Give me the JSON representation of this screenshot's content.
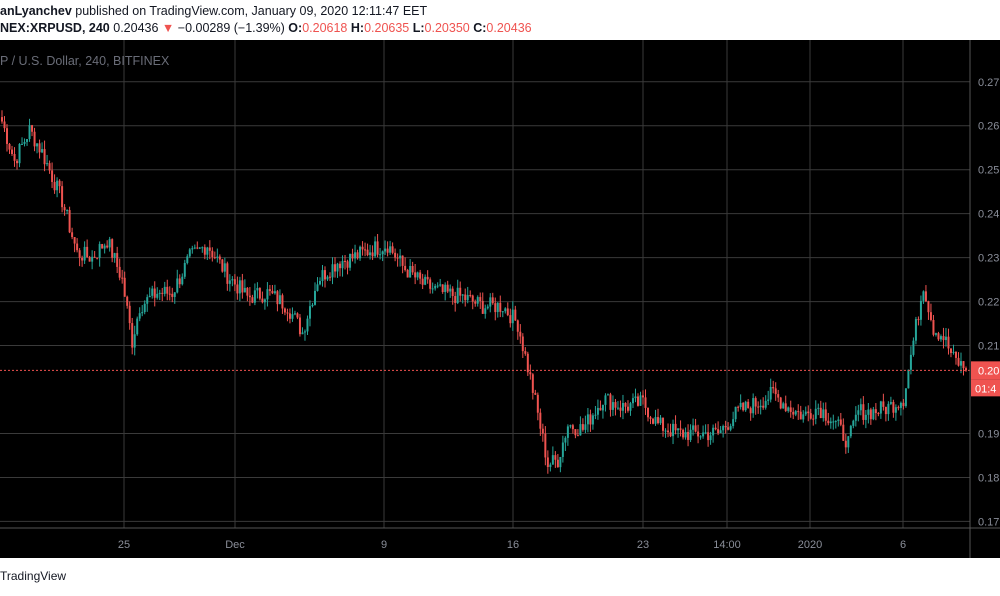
{
  "header": {
    "author": "anLyanchev",
    "published_text": "published on TradingView.com, January 09, 2020 12:11:47 EET",
    "symbol": "NEX:XRPUSD, 240",
    "last_price": "0.20436",
    "change_arrow": "▼",
    "change": "−0.00289 (−1.39%)",
    "open_label": "O:",
    "open_value": "0.20618",
    "high_label": "H:",
    "high_value": "0.20635",
    "low_label": "L:",
    "low_value": "0.20350",
    "close_label": "C:",
    "close_value": "0.20436"
  },
  "footer": {
    "brand": "TradingView"
  },
  "colors": {
    "up": "#26a69a",
    "down": "#ef5350",
    "background": "#000000",
    "grid": "#3a3a3a",
    "price_line": "#ef5350"
  },
  "chart_data": {
    "type": "candlestick",
    "title": "P / U.S. Dollar, 240, BITFINEX",
    "y_tick_labels": [
      "0.27",
      "0.26",
      "0.25",
      "0.24",
      "0.23",
      "0.22",
      "0.21",
      "0.19",
      "0.18",
      "0.17"
    ],
    "x_tick_labels": [
      "25",
      "Dec",
      "9",
      "16",
      "23",
      "14:00",
      "2020",
      "6"
    ],
    "ylim": [
      0.1685,
      0.2795
    ],
    "current_price_label": "0.20",
    "countdown_label": "01:4",
    "current_price": 0.20436,
    "grid": true,
    "price_path": [
      {
        "bar": 0,
        "price": 0.261
      },
      {
        "bar": 5,
        "price": 0.252
      },
      {
        "bar": 11,
        "price": 0.259
      },
      {
        "bar": 16,
        "price": 0.254
      },
      {
        "bar": 24,
        "price": 0.243
      },
      {
        "bar": 30,
        "price": 0.231
      },
      {
        "bar": 36,
        "price": 0.23
      },
      {
        "bar": 42,
        "price": 0.234
      },
      {
        "bar": 48,
        "price": 0.225
      },
      {
        "bar": 52,
        "price": 0.211
      },
      {
        "bar": 55,
        "price": 0.219
      },
      {
        "bar": 62,
        "price": 0.222
      },
      {
        "bar": 68,
        "price": 0.222
      },
      {
        "bar": 75,
        "price": 0.23
      },
      {
        "bar": 82,
        "price": 0.233
      },
      {
        "bar": 90,
        "price": 0.226
      },
      {
        "bar": 98,
        "price": 0.221
      },
      {
        "bar": 106,
        "price": 0.222
      },
      {
        "bar": 114,
        "price": 0.219
      },
      {
        "bar": 120,
        "price": 0.213
      },
      {
        "bar": 126,
        "price": 0.225
      },
      {
        "bar": 134,
        "price": 0.229
      },
      {
        "bar": 140,
        "price": 0.23
      },
      {
        "bar": 148,
        "price": 0.232
      },
      {
        "bar": 154,
        "price": 0.233
      },
      {
        "bar": 160,
        "price": 0.228
      },
      {
        "bar": 168,
        "price": 0.224
      },
      {
        "bar": 176,
        "price": 0.222
      },
      {
        "bar": 184,
        "price": 0.221
      },
      {
        "bar": 192,
        "price": 0.219
      },
      {
        "bar": 200,
        "price": 0.219
      },
      {
        "bar": 206,
        "price": 0.215
      },
      {
        "bar": 212,
        "price": 0.2
      },
      {
        "bar": 218,
        "price": 0.183
      },
      {
        "bar": 222,
        "price": 0.184
      },
      {
        "bar": 226,
        "price": 0.192
      },
      {
        "bar": 232,
        "price": 0.191
      },
      {
        "bar": 240,
        "price": 0.198
      },
      {
        "bar": 248,
        "price": 0.196
      },
      {
        "bar": 256,
        "price": 0.197
      },
      {
        "bar": 262,
        "price": 0.192
      },
      {
        "bar": 270,
        "price": 0.19
      },
      {
        "bar": 278,
        "price": 0.19
      },
      {
        "bar": 286,
        "price": 0.19
      },
      {
        "bar": 294,
        "price": 0.195
      },
      {
        "bar": 302,
        "price": 0.197
      },
      {
        "bar": 308,
        "price": 0.199
      },
      {
        "bar": 314,
        "price": 0.196
      },
      {
        "bar": 320,
        "price": 0.194
      },
      {
        "bar": 326,
        "price": 0.196
      },
      {
        "bar": 332,
        "price": 0.193
      },
      {
        "bar": 338,
        "price": 0.188
      },
      {
        "bar": 342,
        "price": 0.195
      },
      {
        "bar": 348,
        "price": 0.195
      },
      {
        "bar": 354,
        "price": 0.196
      },
      {
        "bar": 360,
        "price": 0.198
      },
      {
        "bar": 364,
        "price": 0.211
      },
      {
        "bar": 368,
        "price": 0.224
      },
      {
        "bar": 372,
        "price": 0.214
      },
      {
        "bar": 376,
        "price": 0.212
      },
      {
        "bar": 380,
        "price": 0.207
      },
      {
        "bar": 385,
        "price": 0.2045
      }
    ]
  }
}
